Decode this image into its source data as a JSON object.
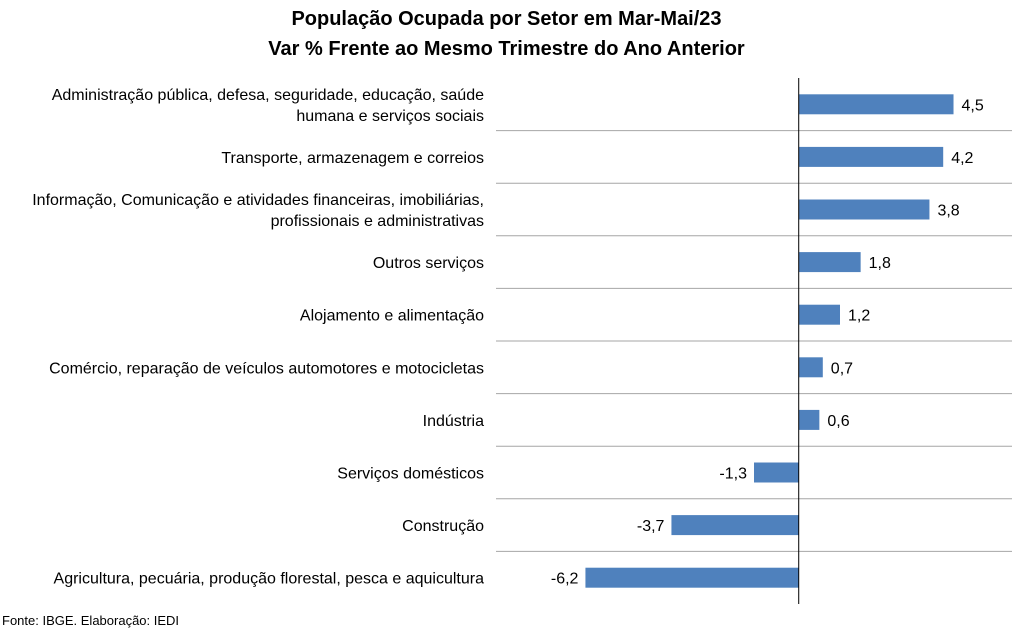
{
  "chart_data": {
    "type": "bar",
    "orientation": "horizontal",
    "title": "População Ocupada por Setor em Mar-Mai/23",
    "subtitle": "Var % Frente ao Mesmo Trimestre do Ano Anterior",
    "categories": [
      [
        "Administração pública, defesa, seguridade, educação, saúde",
        "humana e serviços sociais"
      ],
      [
        "Transporte, armazenagem e correios"
      ],
      [
        "Informação, Comunicação e atividades financeiras, imobiliárias,",
        "profissionais e administrativas"
      ],
      [
        "Outros serviços"
      ],
      [
        "Alojamento e alimentação"
      ],
      [
        "Comércio, reparação de veículos automotores e motocicletas"
      ],
      [
        "Indústria"
      ],
      [
        "Serviços domésticos"
      ],
      [
        "Construção"
      ],
      [
        "Agricultura, pecuária, produção florestal, pesca e aquicultura"
      ]
    ],
    "values": [
      4.5,
      4.2,
      3.8,
      1.8,
      1.2,
      0.7,
      0.6,
      -1.3,
      -3.7,
      -6.2
    ],
    "value_labels": [
      "4,5",
      "4,2",
      "3,8",
      "1,8",
      "1,2",
      "0,7",
      "0,6",
      "-1,3",
      "-3,7",
      "-6,2"
    ],
    "xlim": [
      -8.8,
      6.2
    ],
    "grid": false,
    "legend": "none",
    "bar_color": "#4f81bd",
    "separator_color": "#a6a6a6"
  },
  "source": "Fonte: IBGE. Elaboração: IEDI"
}
